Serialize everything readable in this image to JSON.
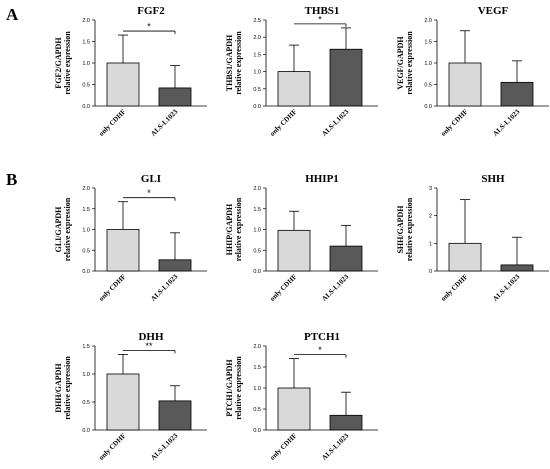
{
  "panel_labels": [
    "A",
    "B"
  ],
  "colors": {
    "control": "#d9d9d9",
    "treatment": "#595959",
    "stroke": "#000000"
  },
  "chart_data": [
    {
      "type": "bar",
      "title": "FGF2",
      "ylabel": [
        "FGF2/GAPDH",
        "relative expression"
      ],
      "categories": [
        "only CDHF",
        "ALS-L1023"
      ],
      "values": [
        1.0,
        0.42
      ],
      "errors": [
        0.65,
        0.52
      ],
      "ylim": [
        0,
        2.0
      ],
      "yticks": [
        "0.0",
        "0.5",
        "1.0",
        "1.5",
        "2.0"
      ],
      "yticks_values": [
        0,
        0.5,
        1.0,
        1.5,
        2.0
      ],
      "significance": "*"
    },
    {
      "type": "bar",
      "title": "THBS1",
      "ylabel": [
        "THBS1/GAPDH",
        "relative expression"
      ],
      "categories": [
        "only CDHF",
        "ALS-L1023"
      ],
      "values": [
        1.0,
        1.65
      ],
      "errors": [
        0.77,
        0.62
      ],
      "ylim": [
        0,
        2.5
      ],
      "yticks": [
        "0.0",
        "0.5",
        "1.0",
        "1.5",
        "2.0",
        "2.5"
      ],
      "yticks_values": [
        0,
        0.5,
        1.0,
        1.5,
        2.0,
        2.5
      ],
      "significance": "*"
    },
    {
      "type": "bar",
      "title": "VEGF",
      "ylabel": [
        "VEGF/GAPDH",
        "relative expression"
      ],
      "categories": [
        "only CDHF",
        "ALS-L1023"
      ],
      "values": [
        1.0,
        0.55
      ],
      "errors": [
        0.75,
        0.5
      ],
      "ylim": [
        0,
        2.0
      ],
      "yticks": [
        "0.0",
        "0.5",
        "1.0",
        "1.5",
        "2.0"
      ],
      "yticks_values": [
        0,
        0.5,
        1.0,
        1.5,
        2.0
      ],
      "significance": ""
    },
    {
      "type": "bar",
      "title": "GLI",
      "ylabel": [
        "GLI/GAPDH",
        "relative expression"
      ],
      "categories": [
        "only CDHF",
        "ALS-L1023"
      ],
      "values": [
        1.0,
        0.27
      ],
      "errors": [
        0.67,
        0.65
      ],
      "ylim": [
        0,
        2.0
      ],
      "yticks": [
        "0.0",
        "0.5",
        "1.0",
        "1.5",
        "2.0"
      ],
      "yticks_values": [
        0,
        0.5,
        1.0,
        1.5,
        2.0
      ],
      "significance": "*"
    },
    {
      "type": "bar",
      "title": "HHIP1",
      "ylabel": [
        "HHIP/GAPDH",
        "relative expression"
      ],
      "categories": [
        "only CDHF",
        "ALS-L1023"
      ],
      "values": [
        0.98,
        0.6
      ],
      "errors": [
        0.46,
        0.5
      ],
      "ylim": [
        0,
        2.0
      ],
      "yticks": [
        "0.0",
        "0.5",
        "1.0",
        "1.5",
        "2.0"
      ],
      "yticks_values": [
        0,
        0.5,
        1.0,
        1.5,
        2.0
      ],
      "significance": ""
    },
    {
      "type": "bar",
      "title": "SHH",
      "ylabel": [
        "SHH/GAPDH",
        "relative expression"
      ],
      "categories": [
        "only CDHF",
        "ALS-L1023"
      ],
      "values": [
        1.0,
        0.22
      ],
      "errors": [
        1.58,
        1.0
      ],
      "ylim": [
        0,
        3
      ],
      "yticks": [
        "0",
        "1",
        "2",
        "3"
      ],
      "yticks_values": [
        0,
        1,
        2,
        3
      ],
      "significance": ""
    },
    {
      "type": "bar",
      "title": "DHH",
      "ylabel": [
        "DHH/GAPDH",
        "relative expression"
      ],
      "categories": [
        "only CDHF",
        "ALS-L1023"
      ],
      "values": [
        1.0,
        0.52
      ],
      "errors": [
        0.35,
        0.27
      ],
      "ylim": [
        0,
        1.5
      ],
      "yticks": [
        "0.0",
        "0.5",
        "1.0",
        "1.5"
      ],
      "yticks_values": [
        0,
        0.5,
        1.0,
        1.5
      ],
      "significance": "**"
    },
    {
      "type": "bar",
      "title": "PTCH1",
      "ylabel": [
        "PTCH1/GAPDH",
        "relative expression"
      ],
      "categories": [
        "only CDHF",
        "ALS-L1023"
      ],
      "values": [
        1.0,
        0.35
      ],
      "errors": [
        0.7,
        0.55
      ],
      "ylim": [
        0,
        2.0
      ],
      "yticks": [
        "0.0",
        "0.5",
        "1.0",
        "1.5",
        "2.0"
      ],
      "yticks_values": [
        0,
        0.5,
        1.0,
        1.5,
        2.0
      ],
      "significance": "*"
    }
  ]
}
